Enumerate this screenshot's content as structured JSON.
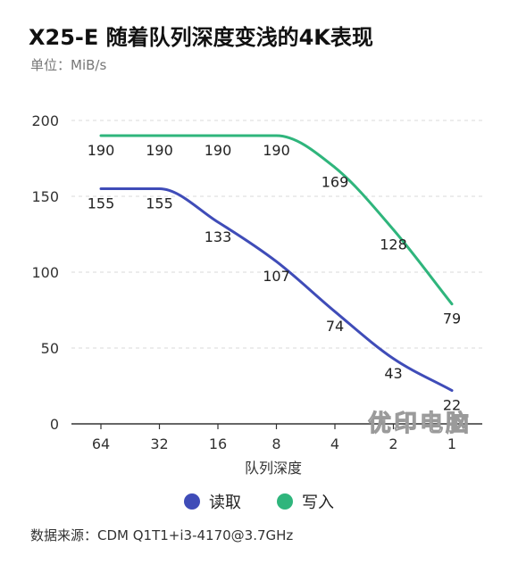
{
  "title": "X25-E 随着队列深度变浅的4K表现",
  "subtitle": "单位：MiB/s",
  "source": "数据来源：CDM Q1T1+i3-4170@3.7GHz",
  "watermark": "优印电脑",
  "legend": {
    "read_label": "读取",
    "write_label": "写入"
  },
  "colors": {
    "read": "#3f4cb8",
    "write": "#2fb57c",
    "grid": "#d9d9d9"
  },
  "chart_data": {
    "type": "line",
    "title": "X25-E 随着队列深度变浅的4K表现",
    "xlabel": "队列深度",
    "ylabel": "单位：MiB/s",
    "categories": [
      "64",
      "32",
      "16",
      "8",
      "4",
      "2",
      "1"
    ],
    "ylim": [
      0,
      200
    ],
    "yticks": [
      0,
      50,
      100,
      150,
      200
    ],
    "grid": true,
    "legend": "bottom",
    "series": [
      {
        "name": "读取",
        "values": [
          155,
          155,
          133,
          107,
          74,
          43,
          22
        ]
      },
      {
        "name": "写入",
        "values": [
          190,
          190,
          190,
          190,
          169,
          128,
          79
        ]
      }
    ]
  }
}
